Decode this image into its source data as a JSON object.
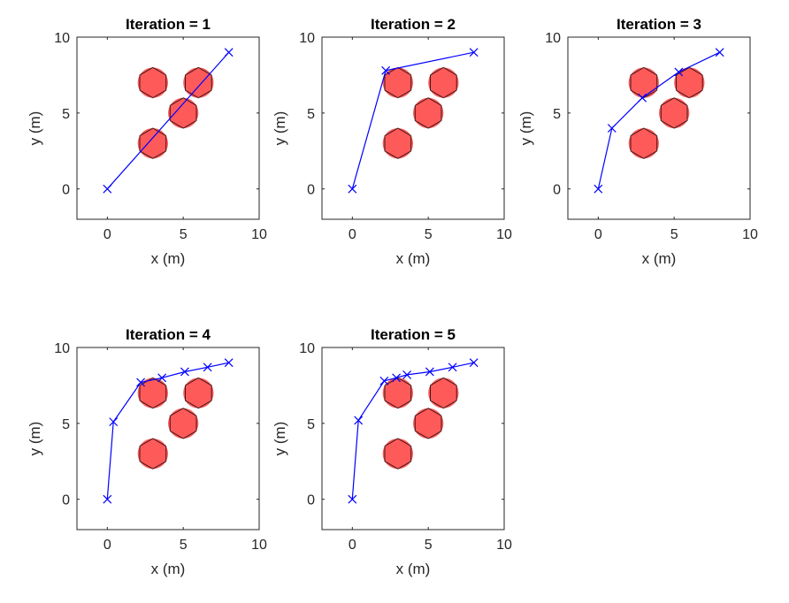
{
  "figure": {
    "background": "#ffffff",
    "path_color": "#0000ff",
    "obstacle_color": "#ff5a5a",
    "obstacle_edge_color": "#000000",
    "axis_color": "#262626"
  },
  "chart_data": [
    {
      "type": "line",
      "title": "Iteration = 1",
      "xlabel": "x (m)",
      "ylabel": "y (m)",
      "xlim": [
        -2,
        10
      ],
      "ylim": [
        -2,
        10
      ],
      "xticks": [
        0,
        5,
        10
      ],
      "yticks": [
        0,
        5,
        10
      ],
      "xtick_labels": [
        "0",
        "5",
        "10"
      ],
      "ytick_labels": [
        "0",
        "5",
        "10"
      ],
      "grid": false,
      "obstacles": [
        {
          "x": 3,
          "y": 7,
          "r": 1
        },
        {
          "x": 6,
          "y": 7,
          "r": 1
        },
        {
          "x": 5,
          "y": 5,
          "r": 1
        },
        {
          "x": 3,
          "y": 3,
          "r": 1
        }
      ],
      "series": [
        {
          "name": "path",
          "x": [
            0,
            8
          ],
          "y": [
            0,
            9
          ]
        }
      ]
    },
    {
      "type": "line",
      "title": "Iteration = 2",
      "xlabel": "x (m)",
      "ylabel": "y (m)",
      "xlim": [
        -2,
        10
      ],
      "ylim": [
        -2,
        10
      ],
      "xticks": [
        0,
        5,
        10
      ],
      "yticks": [
        0,
        5,
        10
      ],
      "xtick_labels": [
        "0",
        "5",
        "10"
      ],
      "ytick_labels": [
        "0",
        "5",
        "10"
      ],
      "grid": false,
      "obstacles": [
        {
          "x": 3,
          "y": 7,
          "r": 1
        },
        {
          "x": 6,
          "y": 7,
          "r": 1
        },
        {
          "x": 5,
          "y": 5,
          "r": 1
        },
        {
          "x": 3,
          "y": 3,
          "r": 1
        }
      ],
      "series": [
        {
          "name": "path",
          "x": [
            0,
            2.2,
            8
          ],
          "y": [
            0,
            7.8,
            9
          ]
        }
      ]
    },
    {
      "type": "line",
      "title": "Iteration = 3",
      "xlabel": "x (m)",
      "ylabel": "y (m)",
      "xlim": [
        -2,
        10
      ],
      "ylim": [
        -2,
        10
      ],
      "xticks": [
        0,
        5,
        10
      ],
      "yticks": [
        0,
        5,
        10
      ],
      "xtick_labels": [
        "0",
        "5",
        "10"
      ],
      "ytick_labels": [
        "0",
        "5",
        "10"
      ],
      "grid": false,
      "obstacles": [
        {
          "x": 3,
          "y": 7,
          "r": 1
        },
        {
          "x": 6,
          "y": 7,
          "r": 1
        },
        {
          "x": 5,
          "y": 5,
          "r": 1
        },
        {
          "x": 3,
          "y": 3,
          "r": 1
        }
      ],
      "series": [
        {
          "name": "path",
          "x": [
            0,
            0.9,
            2.9,
            5.3,
            8
          ],
          "y": [
            0,
            4,
            6,
            7.7,
            9
          ]
        }
      ]
    },
    {
      "type": "line",
      "title": "Iteration = 4",
      "xlabel": "x (m)",
      "ylabel": "y (m)",
      "xlim": [
        -2,
        10
      ],
      "ylim": [
        -2,
        10
      ],
      "xticks": [
        0,
        5,
        10
      ],
      "yticks": [
        0,
        5,
        10
      ],
      "xtick_labels": [
        "0",
        "5",
        "10"
      ],
      "ytick_labels": [
        "0",
        "5",
        "10"
      ],
      "grid": false,
      "obstacles": [
        {
          "x": 3,
          "y": 7,
          "r": 1
        },
        {
          "x": 6,
          "y": 7,
          "r": 1
        },
        {
          "x": 5,
          "y": 5,
          "r": 1
        },
        {
          "x": 3,
          "y": 3,
          "r": 1
        }
      ],
      "series": [
        {
          "name": "path",
          "x": [
            0,
            0.4,
            2.2,
            3.6,
            5.1,
            6.6,
            8
          ],
          "y": [
            0,
            5.1,
            7.7,
            8.0,
            8.4,
            8.7,
            9
          ]
        }
      ]
    },
    {
      "type": "line",
      "title": "Iteration = 5",
      "xlabel": "x (m)",
      "ylabel": "y (m)",
      "xlim": [
        -2,
        10
      ],
      "ylim": [
        -2,
        10
      ],
      "xticks": [
        0,
        5,
        10
      ],
      "yticks": [
        0,
        5,
        10
      ],
      "xtick_labels": [
        "0",
        "5",
        "10"
      ],
      "ytick_labels": [
        "0",
        "5",
        "10"
      ],
      "grid": false,
      "obstacles": [
        {
          "x": 3,
          "y": 7,
          "r": 1
        },
        {
          "x": 6,
          "y": 7,
          "r": 1
        },
        {
          "x": 5,
          "y": 5,
          "r": 1
        },
        {
          "x": 3,
          "y": 3,
          "r": 1
        }
      ],
      "series": [
        {
          "name": "path",
          "x": [
            0,
            0.4,
            2.1,
            2.9,
            3.6,
            5.1,
            6.6,
            8
          ],
          "y": [
            0,
            5.2,
            7.8,
            8.0,
            8.2,
            8.4,
            8.7,
            9
          ]
        }
      ]
    }
  ]
}
